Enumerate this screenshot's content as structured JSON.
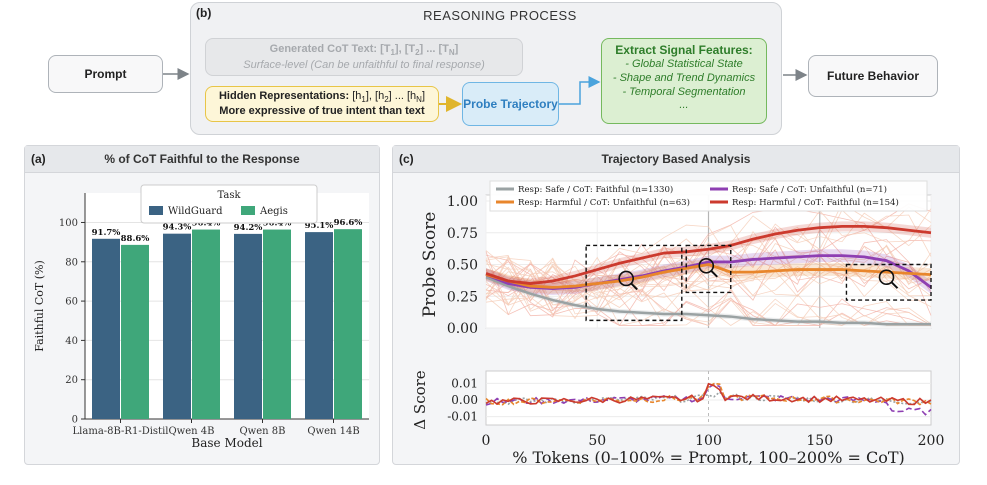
{
  "top": {
    "tag": "(b)",
    "title": "REASONING PROCESS",
    "prompt": "Prompt",
    "future": "Future Behavior",
    "cot_line1": "Generated CoT Text: [T",
    "cot_sub1": "1",
    "cot_mid1": "], [T",
    "cot_sub2": "2",
    "cot_mid2": "] ... [T",
    "cot_subn": "N",
    "cot_end": "]",
    "cot_line2": "Surface-level (Can be unfaithful to final response)",
    "hid_label": "Hidden Representations:",
    "hid_a": " [h",
    "hid_s1": "1",
    "hid_b": "], [h",
    "hid_s2": "2",
    "hid_c": "] ... [h",
    "hid_sn": "N",
    "hid_d": "]",
    "hid_line2": "More expressive of true intent than text",
    "probe": "Probe Trajectory",
    "extract_title": "Extract Signal Features:",
    "extract_items": [
      "- Global Statistical State",
      "- Shape and Trend Dynamics",
      "- Temporal Segmentation",
      "..."
    ]
  },
  "panel_a": {
    "tag": "(a)",
    "title": "% of CoT Faithful to the Response"
  },
  "panel_c": {
    "tag": "(c)",
    "title": "Trajectory Based Analysis"
  },
  "chart_data": [
    {
      "type": "bar",
      "title": "",
      "xlabel": "Base Model",
      "ylabel": "Faithful CoT (%)",
      "ylim": [
        0,
        115
      ],
      "yticks": [
        "0",
        "20",
        "40",
        "60",
        "80",
        "100"
      ],
      "legend_title": "Task",
      "legend_position": "top-center",
      "categories": [
        "Llama-8B-R1-Distil",
        "Qwen 4B",
        "Qwen 8B",
        "Qwen 14B"
      ],
      "series": [
        {
          "name": "WildGuard",
          "color": "#3b6383",
          "values": [
            91.7,
            94.3,
            94.2,
            95.1
          ],
          "labels": [
            "91.7%",
            "94.3%",
            "94.2%",
            "95.1%"
          ]
        },
        {
          "name": "Aegis",
          "color": "#3fa77a",
          "values": [
            88.6,
            96.4,
            96.4,
            96.6
          ],
          "labels": [
            "88.6%",
            "96.4%",
            "96.4%",
            "96.6%"
          ]
        }
      ]
    },
    {
      "type": "line",
      "title": "",
      "xlabel": "% Tokens (0–100% = Prompt, 100–200% = CoT)",
      "ylabel_top": "Probe Score",
      "ylabel_bottom": "Δ Score",
      "xlim": [
        0,
        200
      ],
      "xticks": [
        "0",
        "50",
        "100",
        "150",
        "200"
      ],
      "ylim_top": [
        0,
        1
      ],
      "yticks_top": [
        "0.00",
        "0.25",
        "0.50",
        "0.75",
        "1.00"
      ],
      "ylim_bottom": [
        -0.015,
        0.015
      ],
      "yticks_bottom": [
        "0.01",
        "0.00",
        "-0.01"
      ],
      "legend_position": "top",
      "x": [
        0,
        10,
        20,
        30,
        40,
        50,
        60,
        70,
        80,
        90,
        100,
        110,
        120,
        130,
        140,
        150,
        160,
        170,
        180,
        190,
        200
      ],
      "series": [
        {
          "name": "Resp: Safe / CoT: Faithful (n=1330)",
          "color": "#9aa2a3",
          "values": [
            0.4,
            0.33,
            0.27,
            0.22,
            0.18,
            0.15,
            0.13,
            0.12,
            0.11,
            0.11,
            0.1,
            0.09,
            0.07,
            0.06,
            0.05,
            0.05,
            0.04,
            0.04,
            0.03,
            0.03,
            0.03
          ]
        },
        {
          "name": "Resp: Safe / CoT: Unfaithful (n=71)",
          "color": "#8e3fb2",
          "values": [
            0.42,
            0.35,
            0.32,
            0.31,
            0.32,
            0.35,
            0.38,
            0.41,
            0.45,
            0.48,
            0.52,
            0.52,
            0.54,
            0.55,
            0.56,
            0.57,
            0.57,
            0.56,
            0.53,
            0.45,
            0.32
          ]
        },
        {
          "name": "Resp: Harmful / CoT: Unfaithful (n=63)",
          "color": "#e8862c",
          "values": [
            0.42,
            0.37,
            0.33,
            0.32,
            0.33,
            0.35,
            0.37,
            0.4,
            0.44,
            0.47,
            0.5,
            0.44,
            0.44,
            0.45,
            0.46,
            0.46,
            0.46,
            0.45,
            0.44,
            0.43,
            0.42
          ]
        },
        {
          "name": "Resp: Harmful / CoT: Faithful (n=154)",
          "color": "#cc3a2e",
          "values": [
            0.43,
            0.37,
            0.35,
            0.37,
            0.41,
            0.46,
            0.51,
            0.55,
            0.59,
            0.6,
            0.62,
            0.65,
            0.7,
            0.74,
            0.77,
            0.79,
            0.8,
            0.8,
            0.79,
            0.77,
            0.75
          ]
        }
      ]
    }
  ]
}
